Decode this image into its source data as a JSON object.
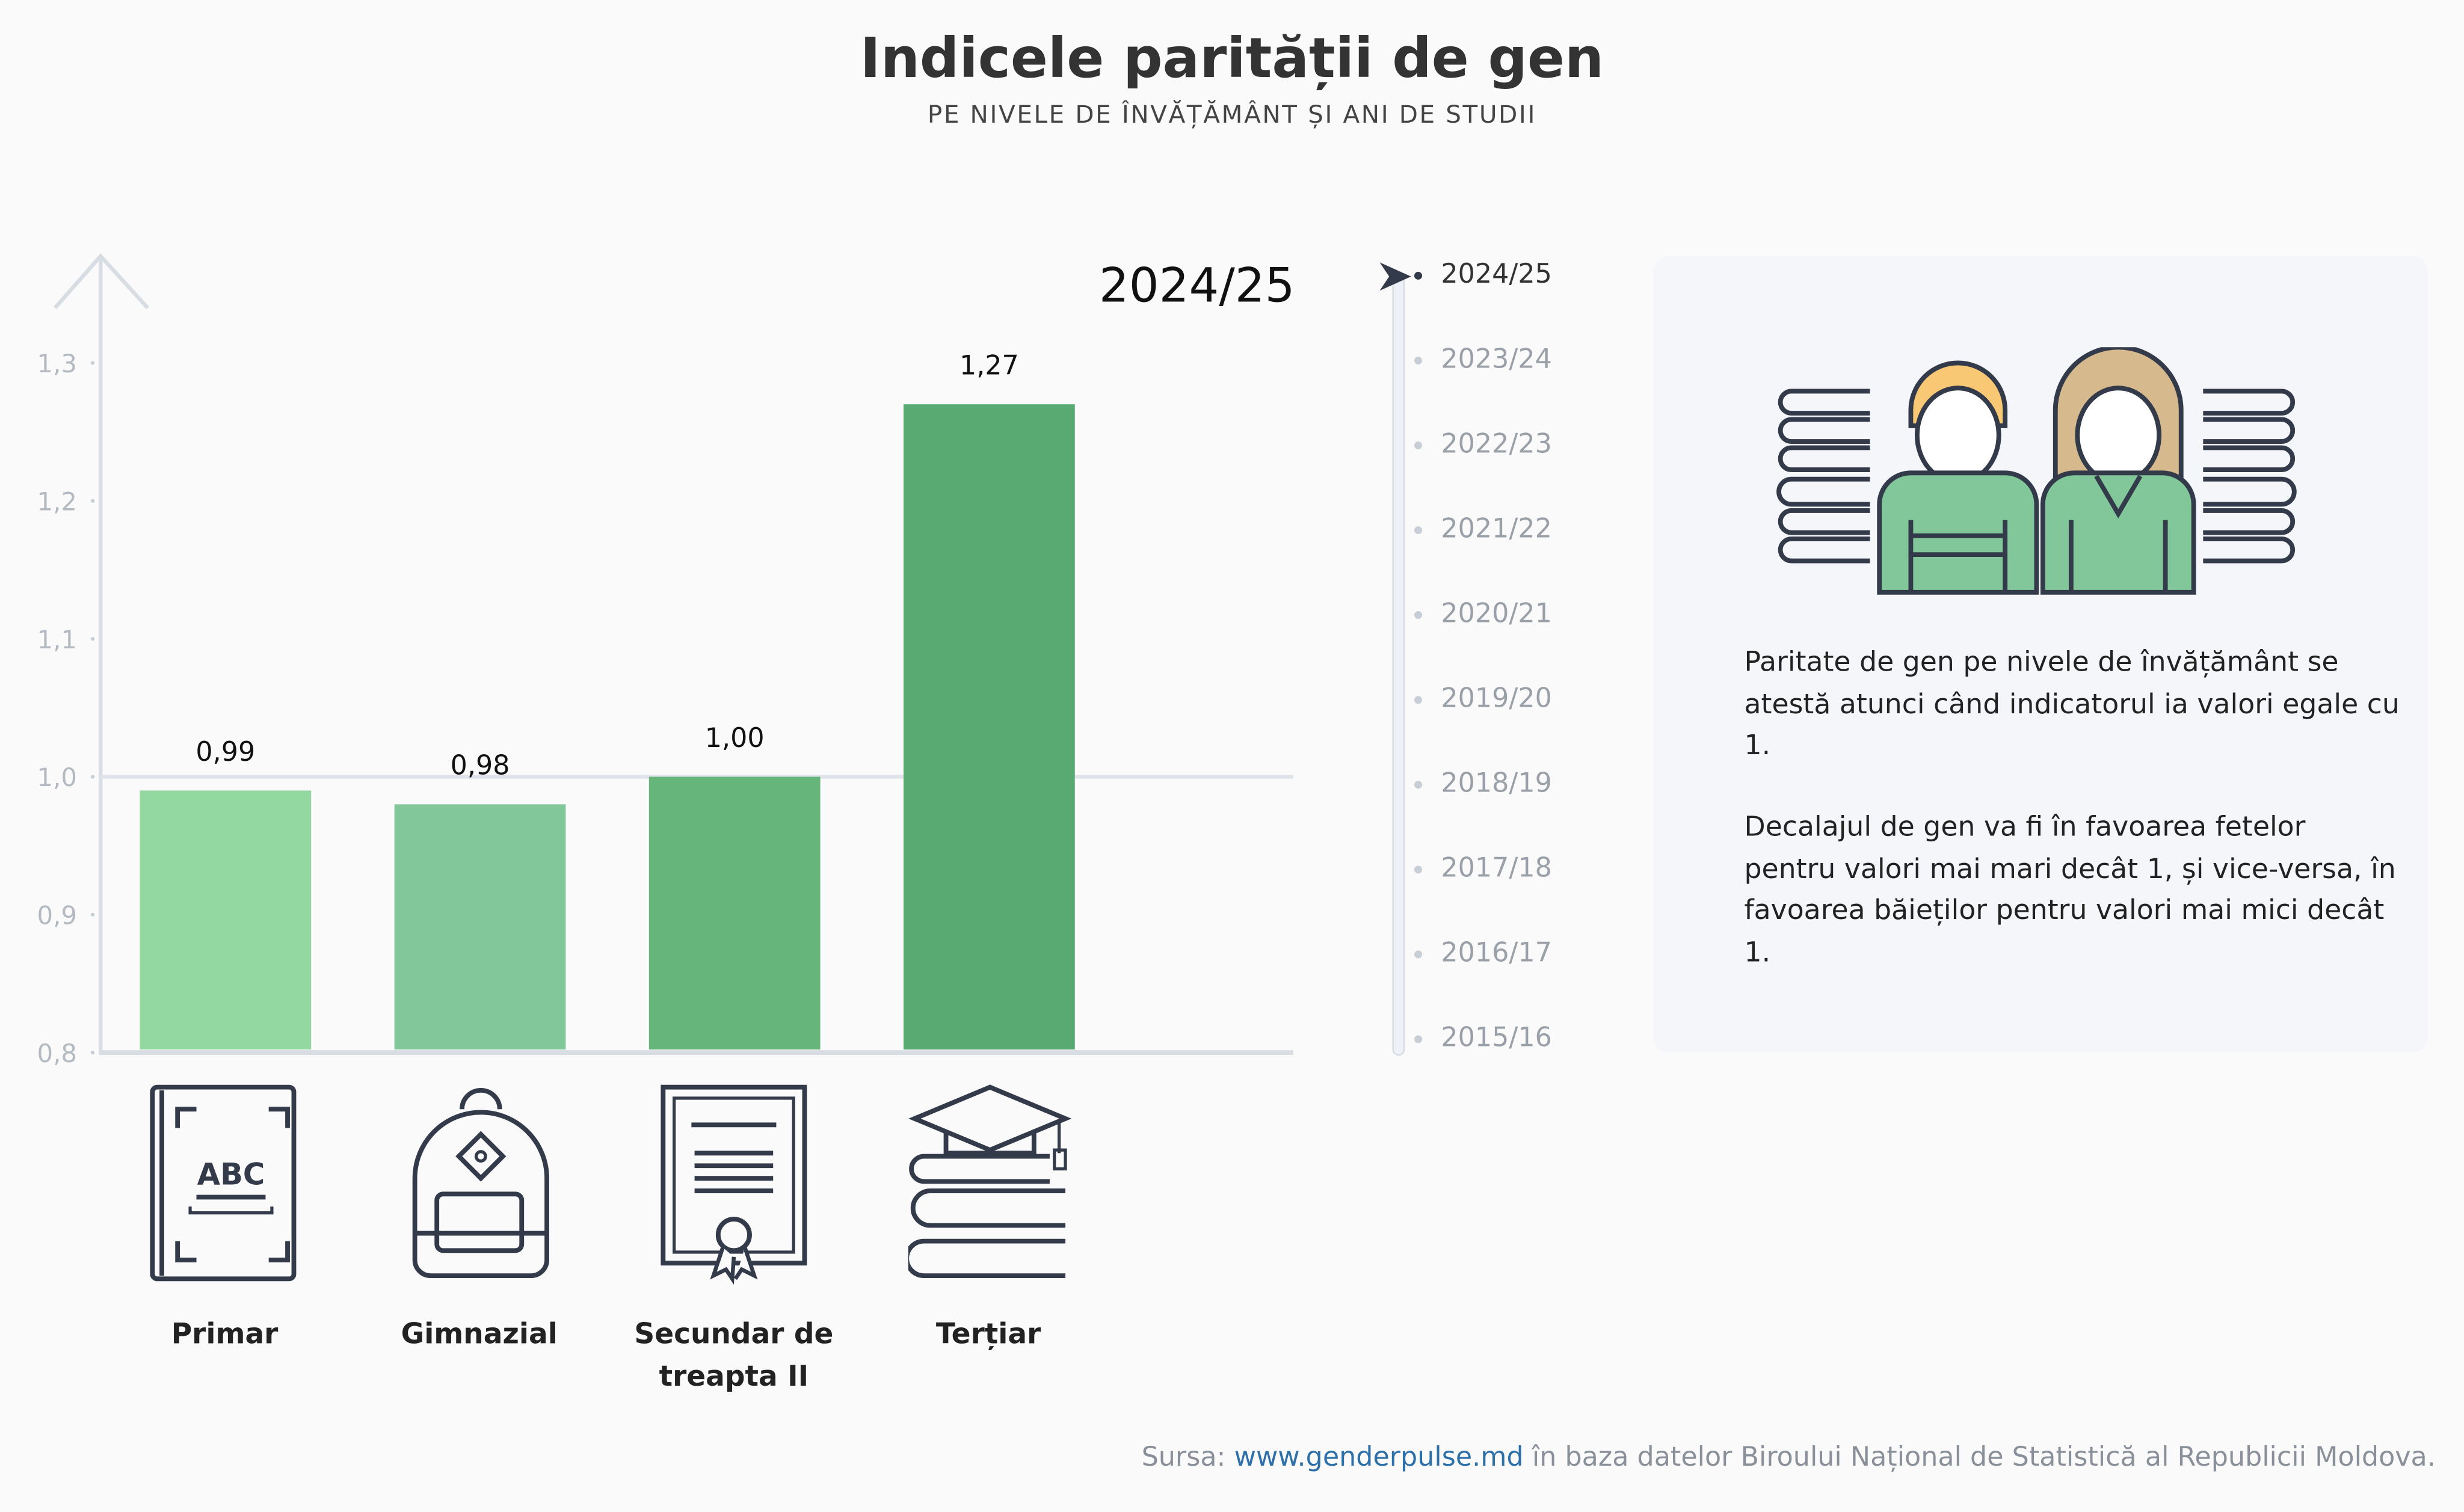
{
  "header": {
    "title": "Indicele parității de gen",
    "subtitle": "PE NIVELE DE ÎNVĂȚĂMÂNT ȘI ANI DE STUDII"
  },
  "chart_data": {
    "type": "bar",
    "title": "2024/25",
    "categories": [
      "Primar",
      "Gimnazial",
      "Secundar de treapta II",
      "Terțiar"
    ],
    "values": [
      0.99,
      0.98,
      1.0,
      1.27
    ],
    "value_labels": [
      "0,99",
      "0,98",
      "1,00",
      "1,27"
    ],
    "colors": [
      "#93d8a0",
      "#82c79a",
      "#66b67c",
      "#59a973"
    ],
    "ylim": [
      0.8,
      1.3
    ],
    "yticks": [
      0.8,
      0.9,
      1.0,
      1.1,
      1.2,
      1.3
    ],
    "ytick_labels": [
      "0,8",
      "0,9",
      "1,0",
      "1,1",
      "1,2",
      "1,3"
    ],
    "reference_line": 1.0,
    "category_icons": [
      "abc-book-icon",
      "backpack-icon",
      "diploma-icon",
      "graduation-books-icon"
    ]
  },
  "timeline": {
    "selected": "2024/25",
    "years": [
      "2024/25",
      "2023/24",
      "2022/23",
      "2021/22",
      "2020/21",
      "2019/20",
      "2018/19",
      "2017/18",
      "2016/17",
      "2015/16"
    ]
  },
  "panel": {
    "illustration": "students-with-books-icon",
    "paragraph1": "Paritate de gen pe nivele de învățământ se atestă atunci când indicatorul ia valori egale cu 1.",
    "paragraph2": "Decalajul de gen va fi în favoarea fetelor pentru valori mai mari decât 1, și vice-versa, în favoarea băieților pentru valori mai mici decât 1."
  },
  "footer": {
    "prefix": "Sursa: ",
    "link": "www.genderpulse.md",
    "suffix": " în baza datelor Biroului Național de Statistică al Republicii Moldova."
  }
}
